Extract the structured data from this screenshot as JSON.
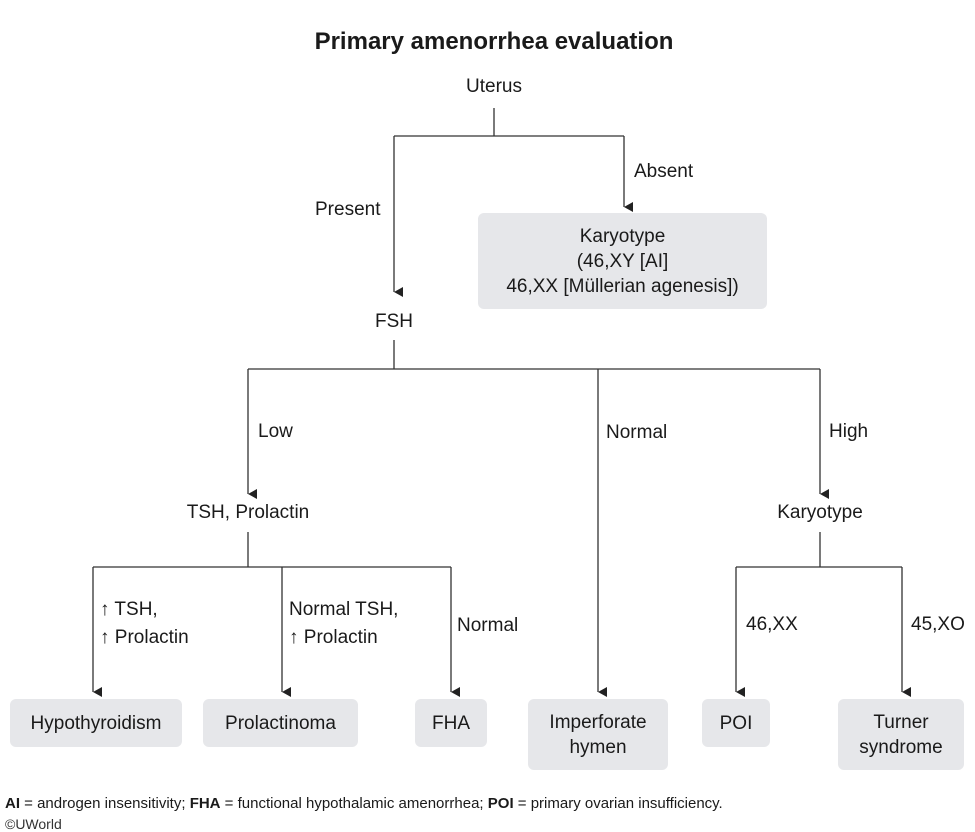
{
  "title": "Primary amenorrhea evaluation",
  "nodes": {
    "uterus": "Uterus",
    "fsh": "FSH",
    "tsh_prolactin": "TSH, Prolactin",
    "karyotype": "Karyotype"
  },
  "edges": {
    "present": "Present",
    "absent": "Absent",
    "low": "Low",
    "normal": "Normal",
    "high": "High",
    "tsh_up": "↑ TSH,",
    "prolactin_up": "↑ Prolactin",
    "normal_tsh": "Normal TSH,",
    "prolactin_up_2": "↑ Prolactin",
    "normal_2": "Normal",
    "xx": "46,XX",
    "xo": "45,XO"
  },
  "outcomes": {
    "karyotype_box": "Karyotype\n(46,XY [AI]\n46,XX [Müllerian agenesis])",
    "hypothyroidism": "Hypothyroidism",
    "prolactinoma": "Prolactinoma",
    "fha": "FHA",
    "imperforate_hymen": "Imperforate\nhymen",
    "poi": "POI",
    "turner_syndrome": "Turner\nsyndrome"
  },
  "footer": {
    "ai_abbr": "AI",
    "ai_def": " = androgen insensitivity; ",
    "fha_abbr": "FHA",
    "fha_def": " = functional hypothalamic amenorrhea; ",
    "poi_abbr": "POI",
    "poi_def": " = primary ovarian insufficiency.",
    "copyright": "©UWorld"
  }
}
